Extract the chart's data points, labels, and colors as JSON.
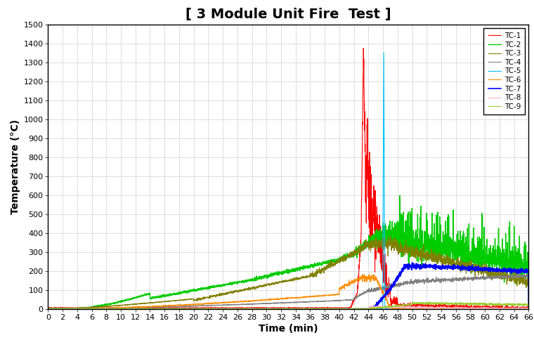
{
  "title": "[ 3 Module Unit Fire  Test ]",
  "xlabel": "Time (min)",
  "ylabel": "Temperature (°C)",
  "xlim": [
    0,
    66
  ],
  "ylim": [
    0,
    1500
  ],
  "xticks": [
    0,
    2,
    4,
    6,
    8,
    10,
    12,
    14,
    16,
    18,
    20,
    22,
    24,
    26,
    28,
    30,
    32,
    34,
    36,
    38,
    40,
    42,
    44,
    46,
    48,
    50,
    52,
    54,
    56,
    58,
    60,
    62,
    64,
    66
  ],
  "yticks": [
    0,
    100,
    200,
    300,
    400,
    500,
    600,
    700,
    800,
    900,
    1000,
    1100,
    1200,
    1300,
    1400,
    1500
  ],
  "legend_labels": [
    "TC-1",
    "TC-2",
    "TC-3",
    "TC-4",
    "TC-5",
    "TC-6",
    "TC-7",
    "TC-8",
    "TC-9"
  ],
  "line_colors": [
    "#ff0000",
    "#00cc00",
    "#808000",
    "#808080",
    "#00bfff",
    "#ff8c00",
    "#0000ff",
    "#ffb6c1",
    "#9acd32"
  ],
  "line_widths": [
    0.8,
    1.0,
    0.8,
    0.8,
    0.8,
    0.8,
    1.2,
    0.8,
    0.8
  ],
  "background_color": "#ffffff",
  "grid_color": "#d0d0d0",
  "title_fontsize": 14,
  "axis_label_fontsize": 10,
  "tick_fontsize": 8
}
